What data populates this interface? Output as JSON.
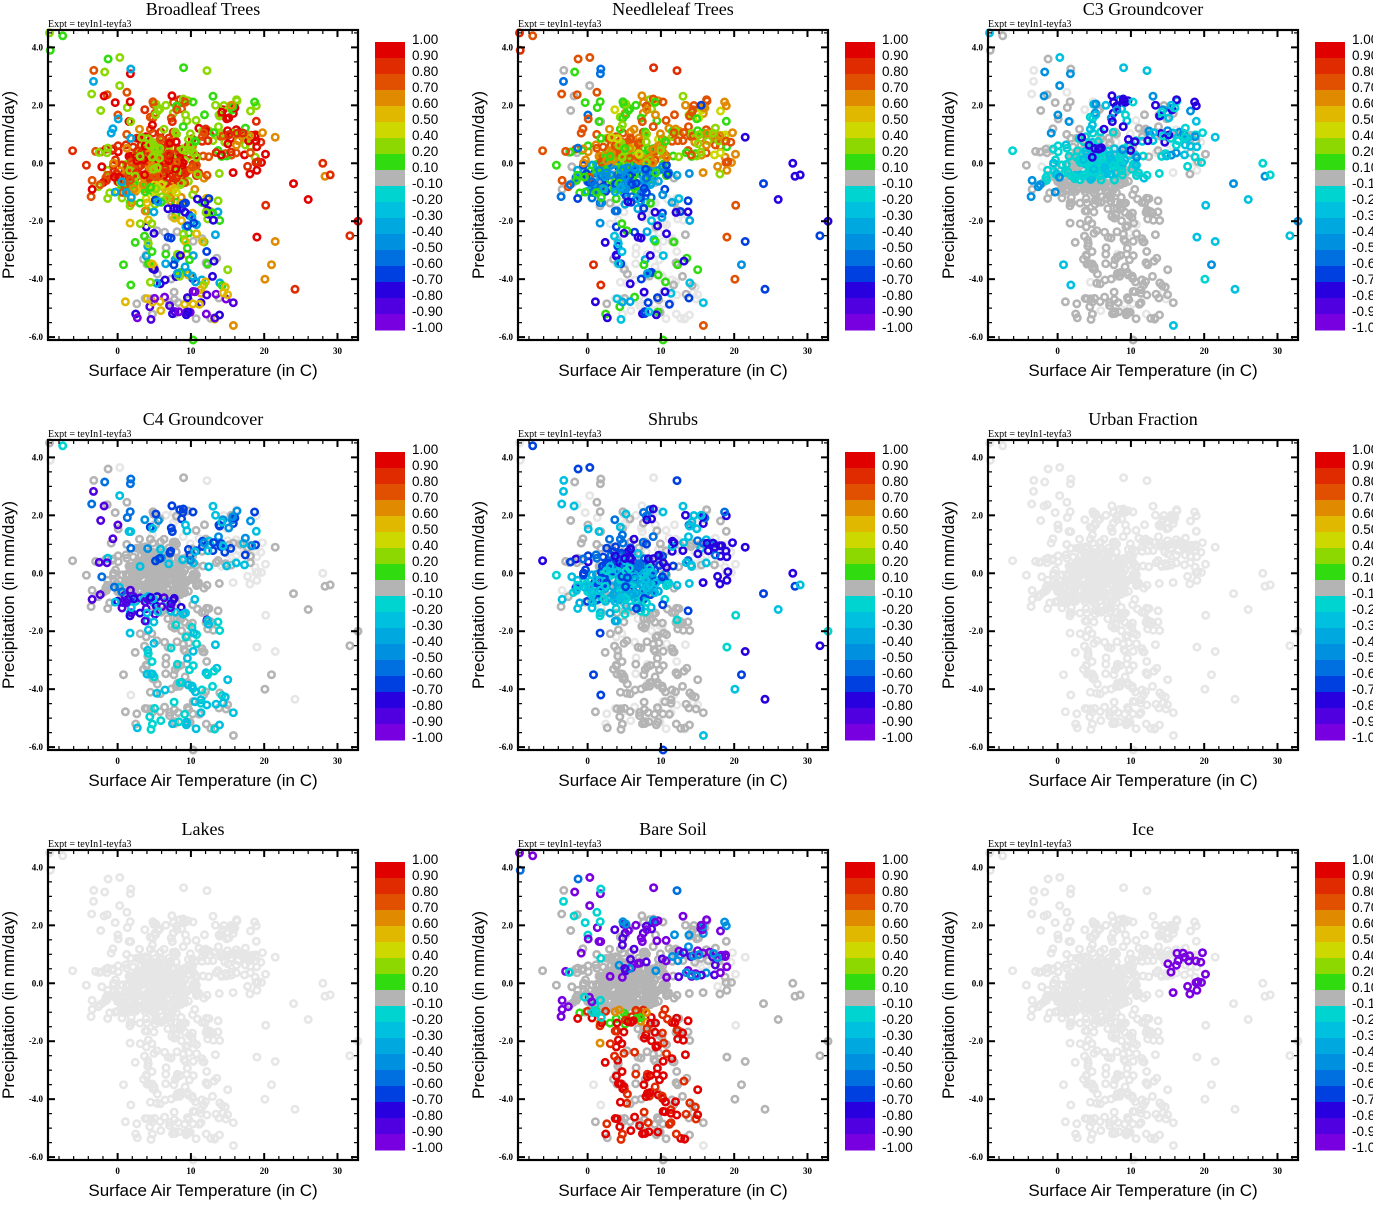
{
  "chart_data": {
    "type": "scatter",
    "layout": "3x3 grid of scatter panels",
    "xlabel": "Surface Air Temperature (in C)",
    "ylabel": "Precipitation (in mm/day)",
    "annotation": "Expt = teyIn1-teyfa3",
    "xlim": [
      -9.5,
      32.8
    ],
    "ylim": [
      -6.1,
      4.6
    ],
    "x_ticks": [
      0,
      10,
      20,
      30
    ],
    "x_tick_labels": [
      "0",
      "10",
      "20",
      "30"
    ],
    "y_ticks": [
      4.0,
      2.0,
      0.0,
      -2.0,
      -4.0,
      -6.0
    ],
    "y_tick_labels": [
      "4.0",
      "2.0",
      "0.0",
      "-2.0",
      "-4.0",
      "-6.0"
    ],
    "grid": false,
    "colorbar": {
      "placement": "right",
      "labels": [
        "1.00",
        "0.90",
        "0.80",
        "0.70",
        "0.60",
        "0.50",
        "0.40",
        "0.20",
        "0.10",
        "-0.10",
        "-0.20",
        "-0.30",
        "-0.40",
        "-0.50",
        "-0.60",
        "-0.70",
        "-0.80",
        "-0.90",
        "-1.00"
      ],
      "colors": [
        "#e00000",
        "#e02a00",
        "#e05000",
        "#e08a00",
        "#e0b800",
        "#ccd800",
        "#8cd800",
        "#30dc10",
        "#b4b4b4",
        "#00d4d0",
        "#00c0e0",
        "#00a8e0",
        "#0090e0",
        "#0070e0",
        "#0040e0",
        "#2800e0",
        "#5000e0",
        "#7800e0"
      ],
      "near_zero_color": "#b4b4b4",
      "masked_color": "#e6e6e6"
    },
    "panels": [
      {
        "title": "Broadleaf Trees",
        "dominant_pattern": "strong positive (0.7-1.0) in the dense core and warm/wet outliers; 0.2-0.5 on core fringes; negative (-0.6 to -1.0) in cool dry tail"
      },
      {
        "title": "Needleleaf Trees",
        "dominant_pattern": "positive 0.6-0.9 in upper core; 0.1-0.4 in wet fringe; negative (-0.4 to -0.7) lower core and dry tail; masked in far dry tail"
      },
      {
        "title": "C3 Groundcover",
        "dominant_pattern": "weak negative (-0.2 to -0.3) in core and warm outliers; near zero (gray) in dry tail"
      },
      {
        "title": "C4 Groundcover",
        "dominant_pattern": "mostly near zero; scattered negative (-0.2 to -0.9) in lower core and dry tail"
      },
      {
        "title": "Shrubs",
        "dominant_pattern": "negative (-0.2 to -0.8) in core and warm outliers; near zero in dry tail"
      },
      {
        "title": "Urban Fraction",
        "dominant_pattern": "all masked (no signal)"
      },
      {
        "title": "Lakes",
        "dominant_pattern": "all masked (no signal)"
      },
      {
        "title": "Bare Soil",
        "dominant_pattern": "strong negative (-0.9 to -1.0) in wet points; strong positive (0.9-1.0) in dry tail; near zero in core"
      },
      {
        "title": "Ice",
        "dominant_pattern": "all masked except a cluster near T=15-20 C, P=-0.5 to 1.1 with value -1.0"
      }
    ]
  }
}
